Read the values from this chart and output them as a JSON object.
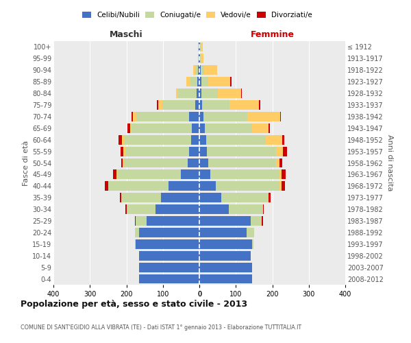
{
  "age_groups": [
    "0-4",
    "5-9",
    "10-14",
    "15-19",
    "20-24",
    "25-29",
    "30-34",
    "35-39",
    "40-44",
    "45-49",
    "50-54",
    "55-59",
    "60-64",
    "65-69",
    "70-74",
    "75-79",
    "80-84",
    "85-89",
    "90-94",
    "95-99",
    "100+"
  ],
  "birth_years": [
    "2008-2012",
    "2003-2007",
    "1998-2002",
    "1993-1997",
    "1988-1992",
    "1983-1987",
    "1978-1982",
    "1973-1977",
    "1968-1972",
    "1963-1967",
    "1958-1962",
    "1953-1957",
    "1948-1952",
    "1943-1947",
    "1938-1942",
    "1933-1937",
    "1928-1932",
    "1923-1927",
    "1918-1922",
    "1913-1917",
    "≤ 1912"
  ],
  "males_celibi": [
    165,
    165,
    165,
    175,
    165,
    145,
    120,
    105,
    85,
    50,
    32,
    28,
    22,
    20,
    28,
    12,
    8,
    5,
    3,
    1,
    2
  ],
  "males_coniugati": [
    0,
    0,
    0,
    2,
    10,
    30,
    80,
    110,
    165,
    175,
    175,
    175,
    185,
    165,
    145,
    90,
    50,
    20,
    8,
    2,
    2
  ],
  "males_vedovi": [
    0,
    0,
    0,
    0,
    2,
    0,
    0,
    0,
    0,
    2,
    3,
    5,
    5,
    5,
    10,
    10,
    5,
    10,
    5,
    0,
    0
  ],
  "males_divorziati": [
    0,
    0,
    0,
    0,
    0,
    2,
    2,
    3,
    10,
    10,
    5,
    8,
    10,
    8,
    3,
    5,
    0,
    0,
    0,
    0,
    0
  ],
  "females_nubili": [
    145,
    145,
    140,
    145,
    130,
    140,
    80,
    60,
    45,
    30,
    25,
    20,
    18,
    15,
    12,
    8,
    5,
    5,
    3,
    1,
    2
  ],
  "females_coniugate": [
    0,
    0,
    0,
    3,
    20,
    30,
    95,
    130,
    175,
    190,
    185,
    190,
    165,
    130,
    120,
    75,
    45,
    20,
    10,
    2,
    2
  ],
  "females_vedove": [
    0,
    0,
    0,
    0,
    0,
    0,
    0,
    0,
    5,
    5,
    10,
    20,
    45,
    45,
    90,
    80,
    65,
    60,
    35,
    8,
    5
  ],
  "females_divorziate": [
    0,
    0,
    0,
    0,
    0,
    5,
    2,
    5,
    10,
    12,
    8,
    10,
    5,
    3,
    2,
    5,
    2,
    3,
    0,
    0,
    0
  ],
  "color_celibi": "#4472C4",
  "color_coniugati": "#C5D8A0",
  "color_vedovi": "#FFCC66",
  "color_divorziati": "#CC0000",
  "xlim": 400,
  "title": "Popolazione per età, sesso e stato civile - 2013",
  "subtitle": "COMUNE DI SANT'EGIDIO ALLA VIBRATA (TE) - Dati ISTAT 1° gennaio 2013 - Elaborazione TUTTITALIA.IT",
  "ylabel": "Fasce di età",
  "ylabel_right": "Anni di nascita",
  "legend_labels": [
    "Celibi/Nubili",
    "Coniugati/e",
    "Vedovi/e",
    "Divorziati/e"
  ],
  "maschi_label": "Maschi",
  "femmine_label": "Femmine"
}
